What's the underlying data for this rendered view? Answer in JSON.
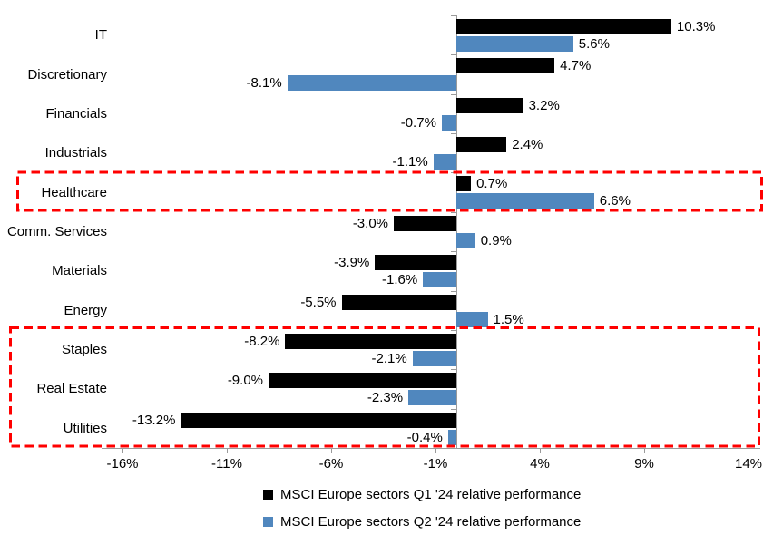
{
  "chart_data": {
    "type": "bar",
    "orientation": "horizontal",
    "title": "",
    "categories": [
      "IT",
      "Discretionary",
      "Financials",
      "Industrials",
      "Healthcare",
      "Comm. Services",
      "Materials",
      "Energy",
      "Staples",
      "Real Estate",
      "Utilities"
    ],
    "series": [
      {
        "name": "MSCI Europe sectors Q1 '24 relative performance",
        "color": "#000000",
        "values": [
          10.3,
          4.7,
          3.2,
          2.4,
          0.7,
          -3.0,
          -3.9,
          -5.5,
          -8.2,
          -9.0,
          -13.2
        ],
        "labels": [
          "10.3%",
          "4.7%",
          "3.2%",
          "2.4%",
          "0.7%",
          "-3.0%",
          "-3.9%",
          "-5.5%",
          "-8.2%",
          "-9.0%",
          "-13.2%"
        ]
      },
      {
        "name": "MSCI Europe sectors Q2 '24 relative performance",
        "color": "#5087BE",
        "values": [
          5.6,
          -8.1,
          -0.7,
          -1.1,
          6.6,
          0.9,
          -1.6,
          1.5,
          -2.1,
          -2.3,
          -0.4
        ],
        "labels": [
          "5.6%",
          "-8.1%",
          "-0.7%",
          "-1.1%",
          "6.6%",
          "0.9%",
          "-1.6%",
          "1.5%",
          "-2.1%",
          "-2.3%",
          "-0.4%"
        ]
      }
    ],
    "x_axis": {
      "tick_values": [
        -16,
        -11,
        -6,
        -1,
        4,
        9,
        14
      ],
      "tick_labels": [
        "-16%",
        "-11%",
        "-6%",
        "-1%",
        "4%",
        "9%",
        "14%"
      ],
      "unit": "%"
    },
    "legend_position": "bottom",
    "grid": false,
    "highlights": [
      {
        "name": "healthcare-box",
        "rows": [
          "Healthcare"
        ],
        "color": "#FF0000",
        "style": "dashed"
      },
      {
        "name": "defensives-box",
        "rows": [
          "Staples",
          "Real Estate",
          "Utilities"
        ],
        "color": "#FF0000",
        "style": "dashed"
      }
    ]
  }
}
